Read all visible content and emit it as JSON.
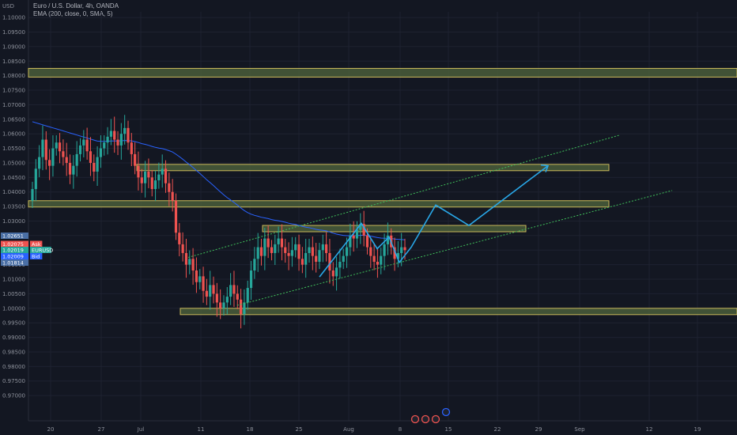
{
  "header": {
    "currency": "USD",
    "symbol_line": "Euro / U.S. Dollar, 4h, OANDA",
    "indicator_line": "EMA (200, close, 0, SMA, 5)"
  },
  "colors": {
    "background": "#131722",
    "up": "#26a69a",
    "down": "#ef5350",
    "ema": "#2962ff",
    "zone_fill": "#4a5d3a",
    "zone_border": "#c9b85a",
    "channel": "#3fbf5a",
    "projection": "#29a8e8"
  },
  "chart_data": {
    "type": "candlestick",
    "yticks": [
      "1.10000",
      "1.09500",
      "1.09000",
      "1.08500",
      "1.08000",
      "1.07500",
      "1.07000",
      "1.06500",
      "1.06000",
      "1.05500",
      "1.05000",
      "1.04500",
      "1.04000",
      "1.03500",
      "1.03000",
      "1.02500",
      "1.02000",
      "1.01500",
      "1.01000",
      "1.00500",
      "1.00000",
      "0.99500",
      "0.99000",
      "0.98500",
      "0.98000",
      "0.97500",
      "0.97000"
    ],
    "ylim": [
      0.965,
      1.1018
    ],
    "xticks": [
      "20",
      "27",
      "Jul",
      "11",
      "18",
      "25",
      "Aug",
      "8",
      "15",
      "22",
      "29",
      "Sep",
      "12",
      "19"
    ],
    "price_tags": [
      {
        "label": "1.02651",
        "color": "#4a6fa5"
      },
      {
        "label": "1.02075",
        "sub": "Ask",
        "color": "#ef5350"
      },
      {
        "label": "1.02019",
        "sub": "EURUSD",
        "color": "#26a69a"
      },
      {
        "label": "1.02009",
        "sub": "Bid",
        "color": "#2962ff"
      },
      {
        "label": "1.01814",
        "color": "#4a6fa5"
      }
    ],
    "zones": [
      {
        "from": 1.0825,
        "to": 1.0795
      },
      {
        "from": 1.0495,
        "to": 1.0487
      },
      {
        "from": 1.037,
        "to": 1.0355
      },
      {
        "from": 1.0285,
        "to": 1.0275
      },
      {
        "from": 1.0,
        "to": 0.9982
      }
    ],
    "candles_close": [
      1.041,
      1.048,
      1.052,
      1.058,
      1.051,
      1.049,
      1.055,
      1.057,
      1.054,
      1.052,
      1.05,
      1.046,
      1.049,
      1.053,
      1.056,
      1.058,
      1.054,
      1.05,
      1.047,
      1.052,
      1.055,
      1.057,
      1.059,
      1.061,
      1.058,
      1.056,
      1.06,
      1.062,
      1.057,
      1.053,
      1.049,
      1.045,
      1.043,
      1.047,
      1.045,
      1.041,
      1.044,
      1.046,
      1.048,
      1.043,
      1.04,
      1.037,
      1.026,
      1.022,
      1.019,
      1.015,
      1.017,
      1.013,
      1.009,
      1.011,
      1.006,
      1.004,
      1.008,
      1.005,
      1.002,
      1.0,
      1.002,
      1.004,
      1.008,
      1.005,
      1.003,
      0.998,
      1.002,
      1.007,
      1.013,
      1.017,
      1.021,
      1.018,
      1.024,
      1.021,
      1.019,
      1.022,
      1.024,
      1.021,
      1.019,
      1.018,
      1.02,
      1.022,
      1.017,
      1.015,
      1.019,
      1.021,
      1.018,
      1.016,
      1.02,
      1.022,
      1.019,
      1.013,
      1.011,
      1.014,
      1.016,
      1.018,
      1.021,
      1.025,
      1.024,
      1.027,
      1.029,
      1.025,
      1.021,
      1.018,
      1.016,
      1.015,
      1.018,
      1.022,
      1.025,
      1.021,
      1.017,
      1.019,
      1.021,
      1.02
    ]
  }
}
